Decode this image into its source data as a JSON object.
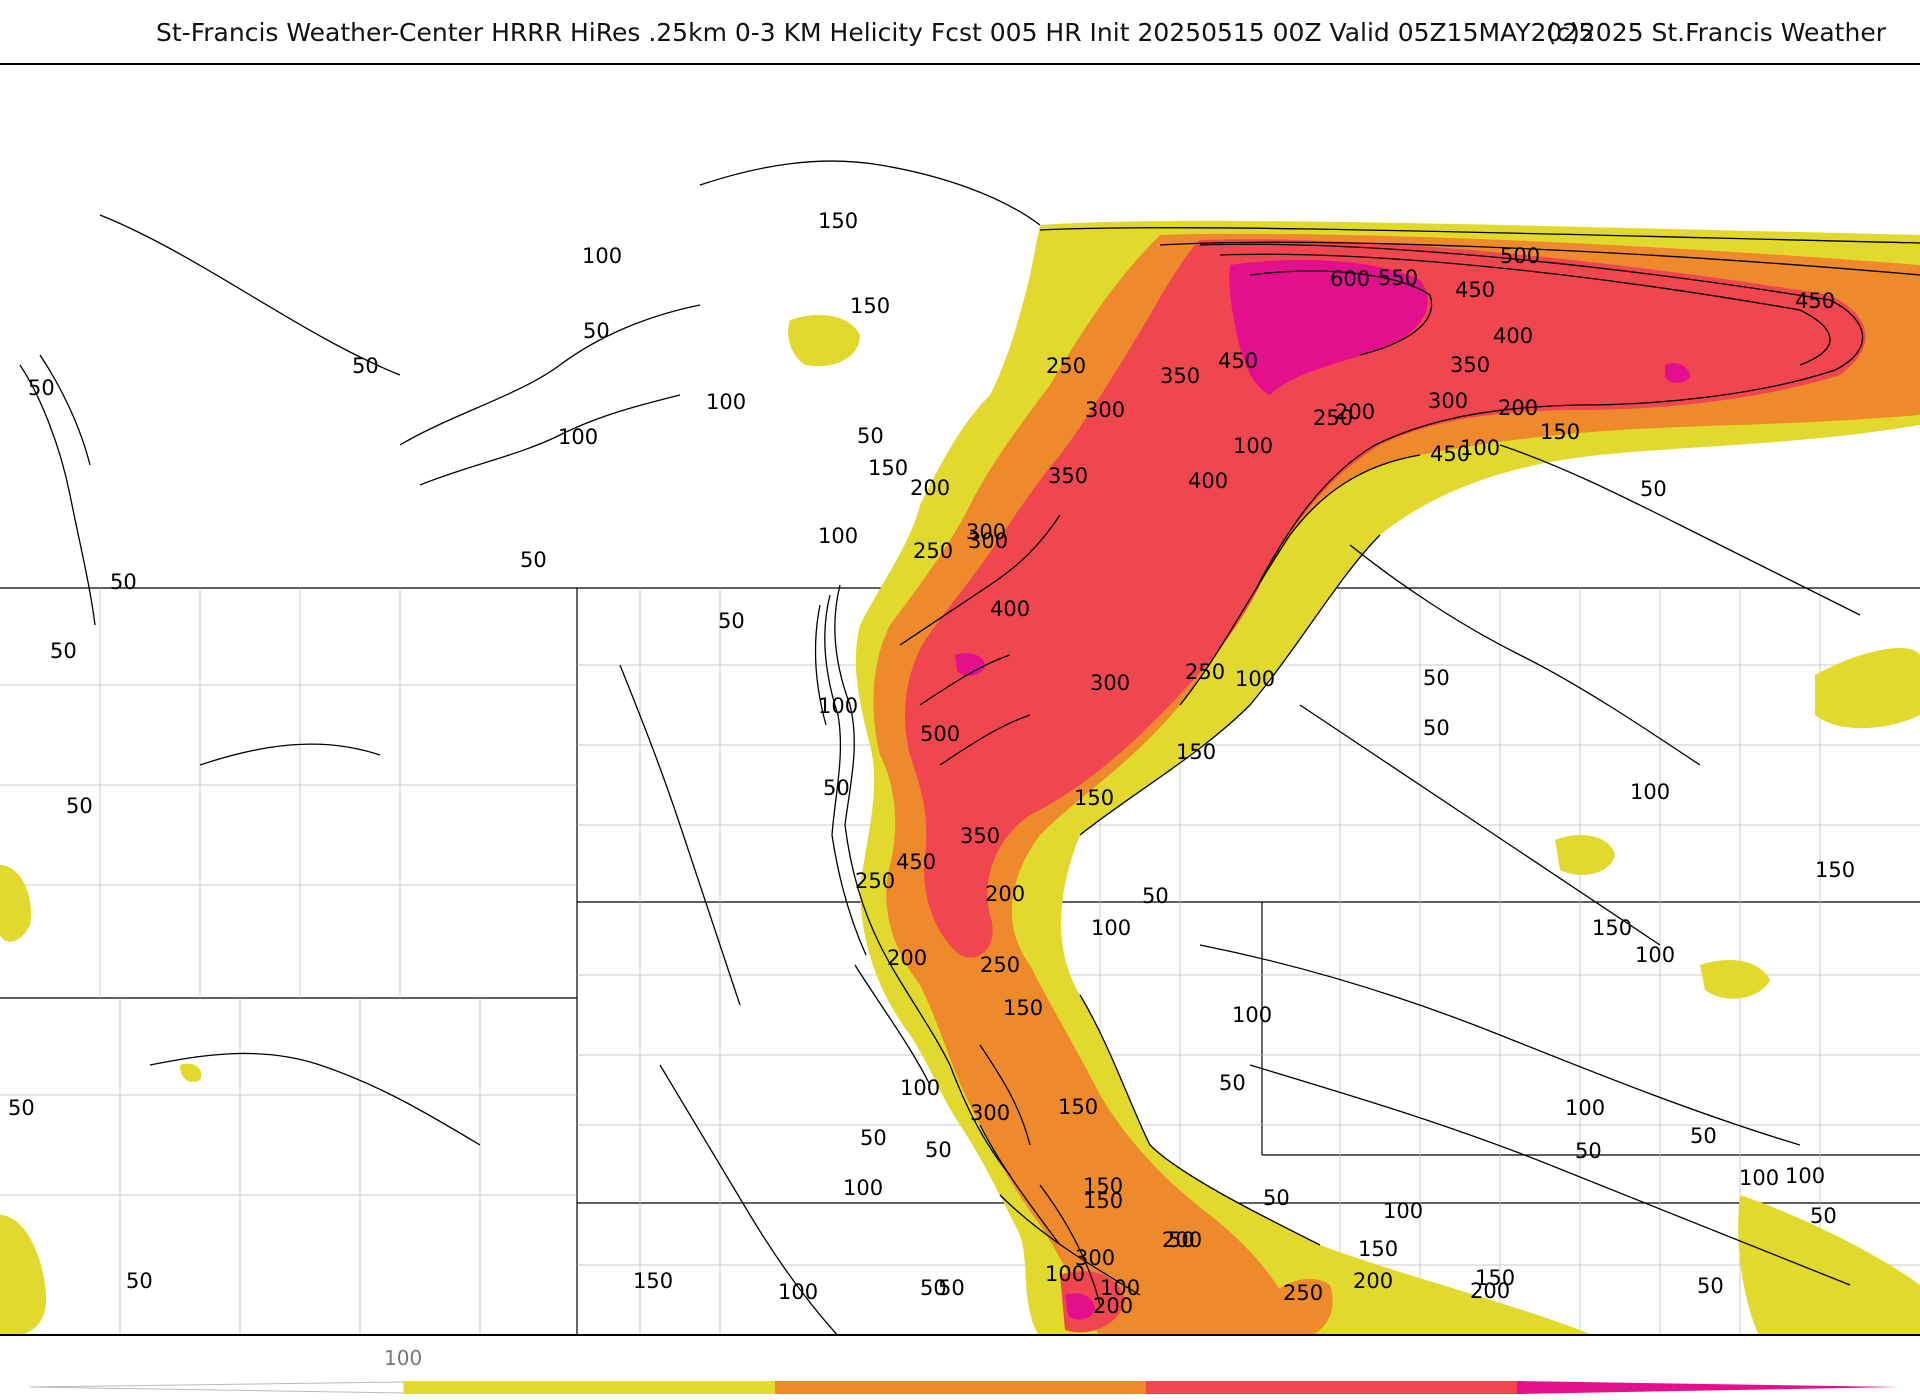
{
  "header": {
    "title": "St-Francis Weather-Center HRRR HiRes .25km 0-3 KM Helicity Fcst 005 HR Init 20250515 00Z  Valid 05Z15MAY2025",
    "credit": "(c)2025 St.Francis Weather"
  },
  "map": {
    "field": "0-3 KM Helicity",
    "contour_labels": [
      "150",
      "100",
      "150",
      "50",
      "50",
      "50",
      "100",
      "100",
      "50",
      "150",
      "200",
      "100",
      "250",
      "300",
      "50",
      "50",
      "50",
      "100",
      "50",
      "50",
      "50",
      "50",
      "50",
      "250",
      "300",
      "350",
      "600",
      "550",
      "450",
      "500",
      "450",
      "400",
      "350",
      "300",
      "200",
      "150",
      "100",
      "450",
      "50",
      "400",
      "350",
      "300",
      "200",
      "250",
      "100",
      "450",
      "400",
      "500",
      "300",
      "250",
      "50",
      "150",
      "100",
      "150",
      "50",
      "100",
      "150",
      "350",
      "450",
      "250",
      "200",
      "50",
      "100",
      "200",
      "250",
      "150",
      "100",
      "300",
      "150",
      "50",
      "50",
      "100",
      "100",
      "50",
      "100",
      "150",
      "100",
      "100",
      "100",
      "50",
      "150",
      "300",
      "200",
      "100",
      "200",
      "150",
      "50",
      "100",
      "150",
      "50",
      "200",
      "250",
      "200",
      "150",
      "50",
      "100",
      "50",
      "150",
      "50",
      "100",
      "50",
      "50"
    ],
    "shading_colors": {
      "yellow": "#e2d92e",
      "orange": "#ee8a2c",
      "red": "#f0464f",
      "magenta": "#e2108c"
    }
  },
  "legend": {
    "first_label": "100",
    "bins": [
      {
        "color": "#e2d92e"
      },
      {
        "color": "#ee8a2c"
      },
      {
        "color": "#f0464f"
      },
      {
        "color": "#e2108c"
      }
    ]
  }
}
